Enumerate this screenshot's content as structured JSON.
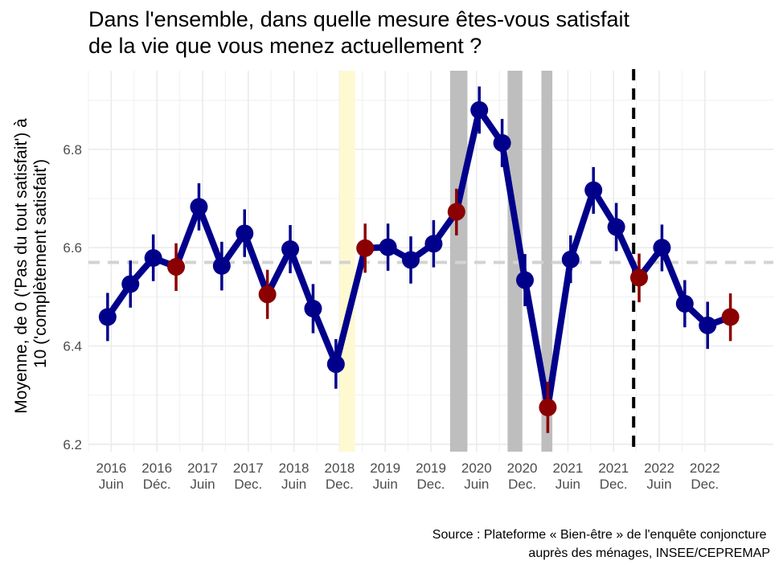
{
  "title": [
    "Dans l'ensemble, dans quelle mesure êtes-vous satisfait",
    " de la vie que vous menez actuellement ?"
  ],
  "ylabel": [
    "Moyenne, de 0 ('Pas du tout satisfait') à",
    "10 ('complètement satisfait')"
  ],
  "caption": [
    "Source : Plateforme « Bien-être » de l'enquête conjoncture",
    "auprès des ménages, INSEE/CEPREMAP"
  ],
  "chart_data": {
    "type": "line",
    "ylim": [
      6.185,
      6.96
    ],
    "y_ticks": [
      6.2,
      6.4,
      6.6,
      6.8
    ],
    "x_ticks": [
      {
        "x": 2016.5,
        "label": [
          "2016",
          "Juin"
        ]
      },
      {
        "x": 2017.0,
        "label": [
          "2016",
          "Déc."
        ]
      },
      {
        "x": 2017.5,
        "label": [
          "2017",
          "Juin"
        ]
      },
      {
        "x": 2018.0,
        "label": [
          "2017",
          "Dec."
        ]
      },
      {
        "x": 2018.5,
        "label": [
          "2018",
          "Juin"
        ]
      },
      {
        "x": 2019.0,
        "label": [
          "2018",
          "Dec."
        ]
      },
      {
        "x": 2019.5,
        "label": [
          "2019",
          "Juin"
        ]
      },
      {
        "x": 2020.0,
        "label": [
          "2019",
          "Dec."
        ]
      },
      {
        "x": 2020.5,
        "label": [
          "2020",
          "Juin"
        ]
      },
      {
        "x": 2021.0,
        "label": [
          "2020",
          "Dec."
        ]
      },
      {
        "x": 2021.5,
        "label": [
          "2021",
          "Juin"
        ]
      },
      {
        "x": 2022.0,
        "label": [
          "2021",
          "Dec."
        ]
      },
      {
        "x": 2022.5,
        "label": [
          "2022",
          "Juin"
        ]
      },
      {
        "x": 2023.0,
        "label": [
          "2022",
          "Dec."
        ]
      }
    ],
    "xlim": [
      2016.25,
      2023.75
    ],
    "mean_line": 6.57,
    "vline_dashed": 2022.22,
    "highlight_band": {
      "x0": 2019.0,
      "x1": 2019.17,
      "color": "#fff9d1"
    },
    "grey_bands": [
      {
        "x0": 2020.21,
        "x1": 2020.4
      },
      {
        "x0": 2020.84,
        "x1": 2021.0
      },
      {
        "x0": 2021.21,
        "x1": 2021.33
      }
    ],
    "series": [
      {
        "color": "#00008b",
        "highlight_color": "#8b0000",
        "points": [
          {
            "x": 2016.46,
            "y": 6.459,
            "lo": 6.41,
            "hi": 6.508,
            "red": false
          },
          {
            "x": 2016.71,
            "y": 6.526,
            "lo": 6.478,
            "hi": 6.574,
            "red": false
          },
          {
            "x": 2016.96,
            "y": 6.579,
            "lo": 6.532,
            "hi": 6.627,
            "red": false
          },
          {
            "x": 2017.21,
            "y": 6.561,
            "lo": 6.512,
            "hi": 6.609,
            "red": true
          },
          {
            "x": 2017.46,
            "y": 6.683,
            "lo": 6.635,
            "hi": 6.731,
            "red": false
          },
          {
            "x": 2017.71,
            "y": 6.563,
            "lo": 6.513,
            "hi": 6.612,
            "red": false
          },
          {
            "x": 2017.96,
            "y": 6.629,
            "lo": 6.581,
            "hi": 6.678,
            "red": false
          },
          {
            "x": 2018.21,
            "y": 6.505,
            "lo": 6.455,
            "hi": 6.555,
            "red": true
          },
          {
            "x": 2018.46,
            "y": 6.597,
            "lo": 6.548,
            "hi": 6.646,
            "red": false
          },
          {
            "x": 2018.71,
            "y": 6.476,
            "lo": 6.426,
            "hi": 6.526,
            "red": false
          },
          {
            "x": 2018.96,
            "y": 6.363,
            "lo": 6.313,
            "hi": 6.414,
            "red": false
          },
          {
            "x": 2019.28,
            "y": 6.599,
            "lo": 6.549,
            "hi": 6.649,
            "red": true
          },
          {
            "x": 2019.53,
            "y": 6.601,
            "lo": 6.553,
            "hi": 6.649,
            "red": false
          },
          {
            "x": 2019.78,
            "y": 6.575,
            "lo": 6.527,
            "hi": 6.623,
            "red": false
          },
          {
            "x": 2020.03,
            "y": 6.608,
            "lo": 6.56,
            "hi": 6.656,
            "red": false
          },
          {
            "x": 2020.28,
            "y": 6.673,
            "lo": 6.625,
            "hi": 6.72,
            "red": true
          },
          {
            "x": 2020.53,
            "y": 6.88,
            "lo": 6.832,
            "hi": 6.928,
            "red": false
          },
          {
            "x": 2020.78,
            "y": 6.813,
            "lo": 6.764,
            "hi": 6.862,
            "red": false
          },
          {
            "x": 2021.03,
            "y": 6.534,
            "lo": 6.481,
            "hi": 6.587,
            "red": false
          },
          {
            "x": 2021.28,
            "y": 6.275,
            "lo": 6.223,
            "hi": 6.327,
            "red": true
          },
          {
            "x": 2021.53,
            "y": 6.576,
            "lo": 6.528,
            "hi": 6.625,
            "red": false
          },
          {
            "x": 2021.78,
            "y": 6.717,
            "lo": 6.669,
            "hi": 6.764,
            "red": false
          },
          {
            "x": 2022.03,
            "y": 6.642,
            "lo": 6.593,
            "hi": 6.691,
            "red": false
          },
          {
            "x": 2022.28,
            "y": 6.539,
            "lo": 6.489,
            "hi": 6.588,
            "red": true
          },
          {
            "x": 2022.53,
            "y": 6.6,
            "lo": 6.552,
            "hi": 6.647,
            "red": false
          },
          {
            "x": 2022.78,
            "y": 6.486,
            "lo": 6.438,
            "hi": 6.534,
            "red": false
          },
          {
            "x": 2023.03,
            "y": 6.442,
            "lo": 6.394,
            "hi": 6.49,
            "red": false
          },
          {
            "x": 2023.28,
            "y": 6.459,
            "lo": 6.41,
            "hi": 6.507,
            "red": true
          }
        ]
      }
    ]
  }
}
